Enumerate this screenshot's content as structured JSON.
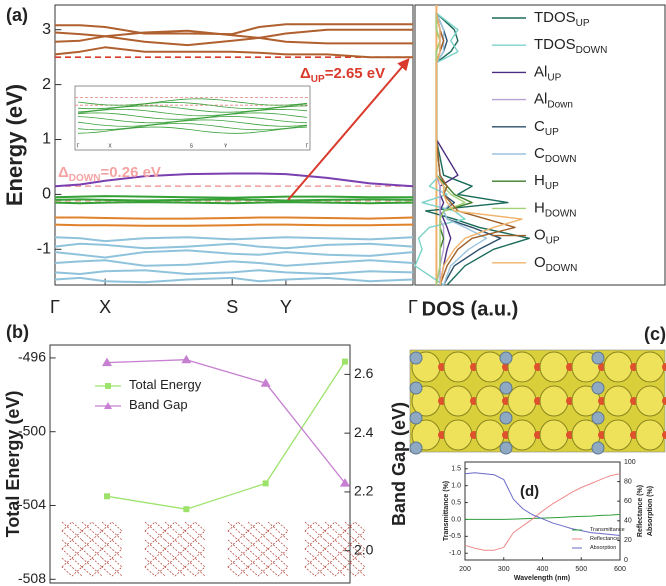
{
  "chart_data": [
    {
      "type": "line",
      "label": "(a)",
      "y_label": "Energy (eV)",
      "xlim": [
        0,
        1
      ],
      "xticks": [
        {
          "value": 0,
          "label": "Γ"
        },
        {
          "value": 0.14,
          "label": "X"
        },
        {
          "value": 0.495,
          "label": "S"
        },
        {
          "value": 0.645,
          "label": "Y"
        },
        {
          "value": 1,
          "label": "Γ"
        }
      ],
      "ylim": [
        -1.65,
        3.45
      ],
      "yticks": [
        -1,
        0,
        1,
        2,
        3
      ],
      "x": [
        0,
        0.07,
        0.14,
        0.25,
        0.37,
        0.495,
        0.57,
        0.645,
        0.76,
        0.88,
        1
      ],
      "series": [
        {
          "color": "#b0602e",
          "values": [
            3.08,
            3.08,
            3.05,
            2.93,
            2.93,
            2.92,
            3.05,
            3.1,
            3.1,
            3.1,
            3.1
          ]
        },
        {
          "color": "#b0602e",
          "values": [
            2.95,
            2.92,
            2.88,
            2.95,
            2.98,
            2.9,
            2.85,
            2.93,
            3.0,
            3.0,
            3.0
          ]
        },
        {
          "color": "#b0602e",
          "values": [
            2.78,
            2.8,
            2.88,
            2.78,
            2.72,
            2.8,
            2.85,
            2.78,
            2.75,
            2.75,
            2.75
          ]
        },
        {
          "color": "#b0602e",
          "values": [
            2.55,
            2.6,
            2.68,
            2.6,
            2.6,
            2.6,
            2.58,
            2.55,
            2.55,
            2.5,
            2.5
          ]
        },
        {
          "color": "#7a3fb0",
          "values": [
            0.15,
            0.18,
            0.25,
            0.33,
            0.37,
            0.38,
            0.38,
            0.37,
            0.3,
            0.2,
            0.15
          ]
        },
        {
          "color": "#35a035",
          "values": [
            -0.05,
            -0.04,
            -0.03,
            -0.04,
            -0.05,
            -0.06,
            -0.05,
            -0.04,
            -0.04,
            -0.05,
            -0.05
          ]
        },
        {
          "color": "#35a035",
          "values": [
            -0.1,
            -0.09,
            -0.1,
            -0.11,
            -0.1,
            -0.09,
            -0.1,
            -0.11,
            -0.1,
            -0.09,
            -0.1
          ]
        },
        {
          "color": "#35a035",
          "values": [
            -0.15,
            -0.16,
            -0.15,
            -0.14,
            -0.15,
            -0.16,
            -0.15,
            -0.14,
            -0.15,
            -0.16,
            -0.15
          ]
        },
        {
          "color": "#e0812c",
          "values": [
            -0.42,
            -0.42,
            -0.43,
            -0.44,
            -0.44,
            -0.43,
            -0.42,
            -0.42,
            -0.43,
            -0.44,
            -0.42
          ]
        },
        {
          "color": "#e0812c",
          "values": [
            -0.55,
            -0.56,
            -0.56,
            -0.57,
            -0.57,
            -0.56,
            -0.55,
            -0.55,
            -0.56,
            -0.56,
            -0.55
          ]
        },
        {
          "color": "#8fc3dc",
          "values": [
            -0.78,
            -0.8,
            -0.85,
            -0.8,
            -0.78,
            -0.82,
            -0.8,
            -0.78,
            -0.8,
            -0.82,
            -0.78
          ]
        },
        {
          "color": "#8fc3dc",
          "values": [
            -0.95,
            -0.9,
            -0.92,
            -0.98,
            -0.95,
            -0.9,
            -0.95,
            -0.98,
            -0.92,
            -0.9,
            -0.95
          ]
        },
        {
          "color": "#8fc3dc",
          "values": [
            -1.05,
            -1.1,
            -1.15,
            -1.05,
            -1.02,
            -1.08,
            -1.1,
            -1.05,
            -1.1,
            -1.12,
            -1.05
          ]
        },
        {
          "color": "#8fc3dc",
          "values": [
            -1.25,
            -1.22,
            -1.2,
            -1.3,
            -1.28,
            -1.22,
            -1.25,
            -1.3,
            -1.25,
            -1.2,
            -1.25
          ]
        },
        {
          "color": "#8fc3dc",
          "values": [
            -1.42,
            -1.45,
            -1.4,
            -1.38,
            -1.45,
            -1.42,
            -1.38,
            -1.42,
            -1.45,
            -1.4,
            -1.42
          ]
        },
        {
          "color": "#8fc3dc",
          "values": [
            -1.55,
            -1.52,
            -1.58,
            -1.6,
            -1.55,
            -1.52,
            -1.58,
            -1.55,
            -1.52,
            -1.58,
            -1.55
          ]
        }
      ],
      "reference_lines": [
        {
          "value": 2.5,
          "color": "#d93a2b"
        },
        {
          "value": 0.15,
          "color": "#f2a5a5"
        },
        {
          "value": -0.12,
          "color": "#f2a5a5"
        }
      ],
      "annotations": [
        {
          "main": "Δ",
          "sub": "UP",
          "text": "=2.65 eV",
          "color": "#d93a2b"
        },
        {
          "main": "Δ",
          "sub": "DOWN",
          "text": "=0.26 eV",
          "color": "#f4a3a3"
        }
      ]
    },
    {
      "type": "line",
      "orientation": "horizontal",
      "x_label": "DOS (a.u.)",
      "xlim": [
        -0.6,
        6.4
      ],
      "ylim": [
        -1.65,
        3.45
      ],
      "energy": [
        -1.65,
        -1.3,
        -1.0,
        -0.8,
        -0.6,
        -0.45,
        -0.3,
        -0.15,
        0,
        0.15,
        0.35,
        1.0,
        2.4,
        2.6,
        2.8,
        3.0,
        3.3
      ],
      "series": [
        {
          "name": "TDOS",
          "sub": "UP",
          "color": "#1b6b5a",
          "values": [
            0.3,
            0.8,
            1.6,
            2.6,
            1.2,
            0.5,
            -0.3,
            2.0,
            0.6,
            1.0,
            0.2,
            0,
            0,
            0.4,
            0.6,
            0.5,
            0
          ]
        },
        {
          "name": "TDOS",
          "sub": "DOWN",
          "color": "#7ad3c8",
          "values": [
            0.2,
            -0.6,
            -0.4,
            -0.5,
            -0.2,
            0.8,
            0.5,
            -0.4,
            0.3,
            -0.2,
            0.1,
            0,
            0,
            0.6,
            0.4,
            0.6,
            0
          ]
        },
        {
          "name": "Al",
          "sub": "UP",
          "color": "#4a2c80",
          "values": [
            0.1,
            0.2,
            0.3,
            0.4,
            0.3,
            0.2,
            0.1,
            0.2,
            0.1,
            0.1,
            0.6,
            0,
            0,
            0.1,
            0.2,
            0.1,
            0
          ]
        },
        {
          "name": "Al",
          "sub": "Down",
          "color": "#b4a2d6",
          "values": [
            0.1,
            0.1,
            0.2,
            0.2,
            0.2,
            0.1,
            0.1,
            0.1,
            0.1,
            0.1,
            0,
            0,
            0,
            0.1,
            0.1,
            0.1,
            0
          ]
        },
        {
          "name": "C",
          "sub": "UP",
          "color": "#2b4e6b",
          "values": [
            0.2,
            0.5,
            1.2,
            1.8,
            1.0,
            0.3,
            0.2,
            0.5,
            0.2,
            0.3,
            0.1,
            0,
            0,
            0.2,
            0.3,
            0.2,
            0
          ]
        },
        {
          "name": "C",
          "sub": "DOWN",
          "color": "#9cc4df",
          "values": [
            0.2,
            0.4,
            0.9,
            1.4,
            0.8,
            0.3,
            0.2,
            0.4,
            0.2,
            0.2,
            0.1,
            0,
            0,
            0.2,
            0.2,
            0.2,
            0
          ]
        },
        {
          "name": "H",
          "sub": "UP",
          "color": "#3d7d2b",
          "values": [
            0,
            0.1,
            0.1,
            0.2,
            0.1,
            0.1,
            0.2,
            1.0,
            0.5,
            0.3,
            0,
            0,
            0,
            0,
            0.1,
            0,
            0
          ]
        },
        {
          "name": "H",
          "sub": "DOWN",
          "color": "#a5d37a",
          "values": [
            0,
            0.1,
            0.1,
            0.1,
            0.1,
            0.1,
            0.2,
            0.8,
            0.4,
            0.2,
            0,
            0,
            0,
            0,
            0.1,
            0,
            0
          ]
        },
        {
          "name": "O",
          "sub": "UP",
          "color": "#9e5f28",
          "values": [
            0.1,
            0.3,
            0.6,
            1.0,
            2.2,
            1.4,
            0.6,
            0.4,
            0.2,
            0.3,
            0.1,
            0,
            0,
            0.1,
            0.2,
            0.1,
            0
          ]
        },
        {
          "name": "O",
          "sub": "DOWN",
          "color": "#f2b36b",
          "values": [
            0.1,
            0.2,
            0.5,
            0.8,
            1.6,
            2.4,
            0.5,
            0.3,
            0.2,
            0.2,
            0,
            0,
            0,
            0.1,
            0.1,
            0.1,
            0
          ]
        }
      ]
    },
    {
      "type": "line",
      "label": "(b)",
      "y_label": "Total Energy (eV)",
      "y2_label": "Band Gap (eV)",
      "categories": [
        null,
        null,
        null,
        null
      ],
      "ylim": [
        -508.2,
        -495.3
      ],
      "yticks": [
        -496,
        -500,
        -504,
        -508
      ],
      "y2lim": [
        1.89,
        2.7
      ],
      "y2ticks": [
        {
          "value": 2,
          "label": "2.0"
        },
        2.2,
        2.4,
        2.6
      ],
      "series": [
        {
          "name": "Total Energy",
          "color": "#9de36b",
          "marker": "square",
          "values": [
            -503.5,
            -504.2,
            -502.8,
            -496.2
          ]
        },
        {
          "name": "Band Gap",
          "color": "#c77fd1",
          "marker": "triangle",
          "axis": "y2",
          "values": [
            2.64,
            2.65,
            2.57,
            2.23
          ]
        }
      ]
    },
    {
      "type": "image",
      "label": "(c)"
    },
    {
      "type": "line",
      "label": "(d)",
      "x_label": "Wavelength (nm)",
      "y_label": "Transmittance (%)",
      "y2_label": [
        "Reflectance (%)",
        "Absorption (%)"
      ],
      "xlim": [
        200,
        600
      ],
      "xticks": [
        200,
        300,
        400,
        500,
        600
      ],
      "ylim": [
        -1.2,
        1.7
      ],
      "yticks": [
        {
          "value": 1.5,
          "label": "1.5"
        },
        {
          "value": 1,
          "label": "1.0"
        },
        {
          "value": 0.5,
          "label": "0.5"
        },
        {
          "value": 0,
          "label": "0.0"
        },
        {
          "value": -0.5,
          "label": "-0.5"
        },
        {
          "value": -1,
          "label": "-1.0"
        }
      ],
      "y2lim": [
        0,
        100
      ],
      "y2ticks": [
        0,
        20,
        40,
        60,
        80,
        100
      ],
      "x": [
        200,
        225,
        250,
        275,
        300,
        325,
        350,
        375,
        400,
        425,
        450,
        475,
        500,
        525,
        550,
        575,
        600
      ],
      "series": [
        {
          "name": "Transmittance",
          "color": "#2e9e3a",
          "values": [
            0,
            0,
            0,
            0,
            0,
            0.01,
            0.02,
            0.03,
            0.04,
            0.05,
            0.06,
            0.08,
            0.09,
            0.1,
            0.12,
            0.13,
            0.15
          ]
        },
        {
          "name": "Reflectance",
          "color": "#f08a8a",
          "axis": "y2",
          "values": [
            15,
            12,
            10,
            10,
            13,
            28,
            35,
            42,
            50,
            57,
            63,
            69,
            74,
            78,
            82,
            86,
            88
          ]
        },
        {
          "name": "Absorption",
          "color": "#6a6ac8",
          "axis": "y2",
          "values": [
            88,
            89,
            88,
            87,
            82,
            62,
            52,
            46,
            42,
            38,
            35,
            32,
            30,
            28,
            27,
            26,
            25
          ]
        }
      ]
    }
  ]
}
